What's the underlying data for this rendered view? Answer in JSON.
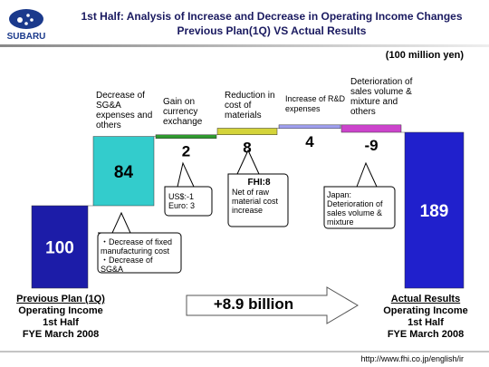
{
  "header": {
    "logo": "SUBARU",
    "title": "1st Half:  Analysis of Increase and Decrease in Operating Income Changes",
    "subtitle": "Previous Plan(1Q) VS Actual Results"
  },
  "chart_data": {
    "type": "waterfall",
    "unit": "(100 million yen)",
    "categories": [
      "Previous Plan (1Q)",
      "Decrease of SG&A expenses and others",
      "Gain on currency exchange",
      "Reduction in cost of materials",
      "Increase of R&D expenses",
      "Deterioration of sales volume & mixture and others",
      "Actual Results"
    ],
    "values": [
      100,
      84,
      2,
      8,
      4,
      -9,
      189
    ],
    "colors": [
      "#1c1ca8",
      "#33cccc",
      "#2e9a2e",
      "#d4d43a",
      "#9f9ff0",
      "#cc44cc",
      "#2020cc"
    ],
    "total_lines": [
      "Operating Income",
      "1st Half",
      "FYE March 2008"
    ],
    "annotations": {
      "sga": [
        "・Decrease of fixed manufacturing cost",
        "・Decrease of SG&A"
      ],
      "fx": [
        "US$:-1",
        "Euro: 3"
      ],
      "material": [
        "FHI:8",
        "Net of raw material cost increase"
      ],
      "sales": [
        "Japan: Deterioration of sales volume & mixture"
      ],
      "arrow": "+8.9 billion"
    }
  },
  "footer": {
    "url": "http://www.fhi.co.jp/english/ir"
  }
}
